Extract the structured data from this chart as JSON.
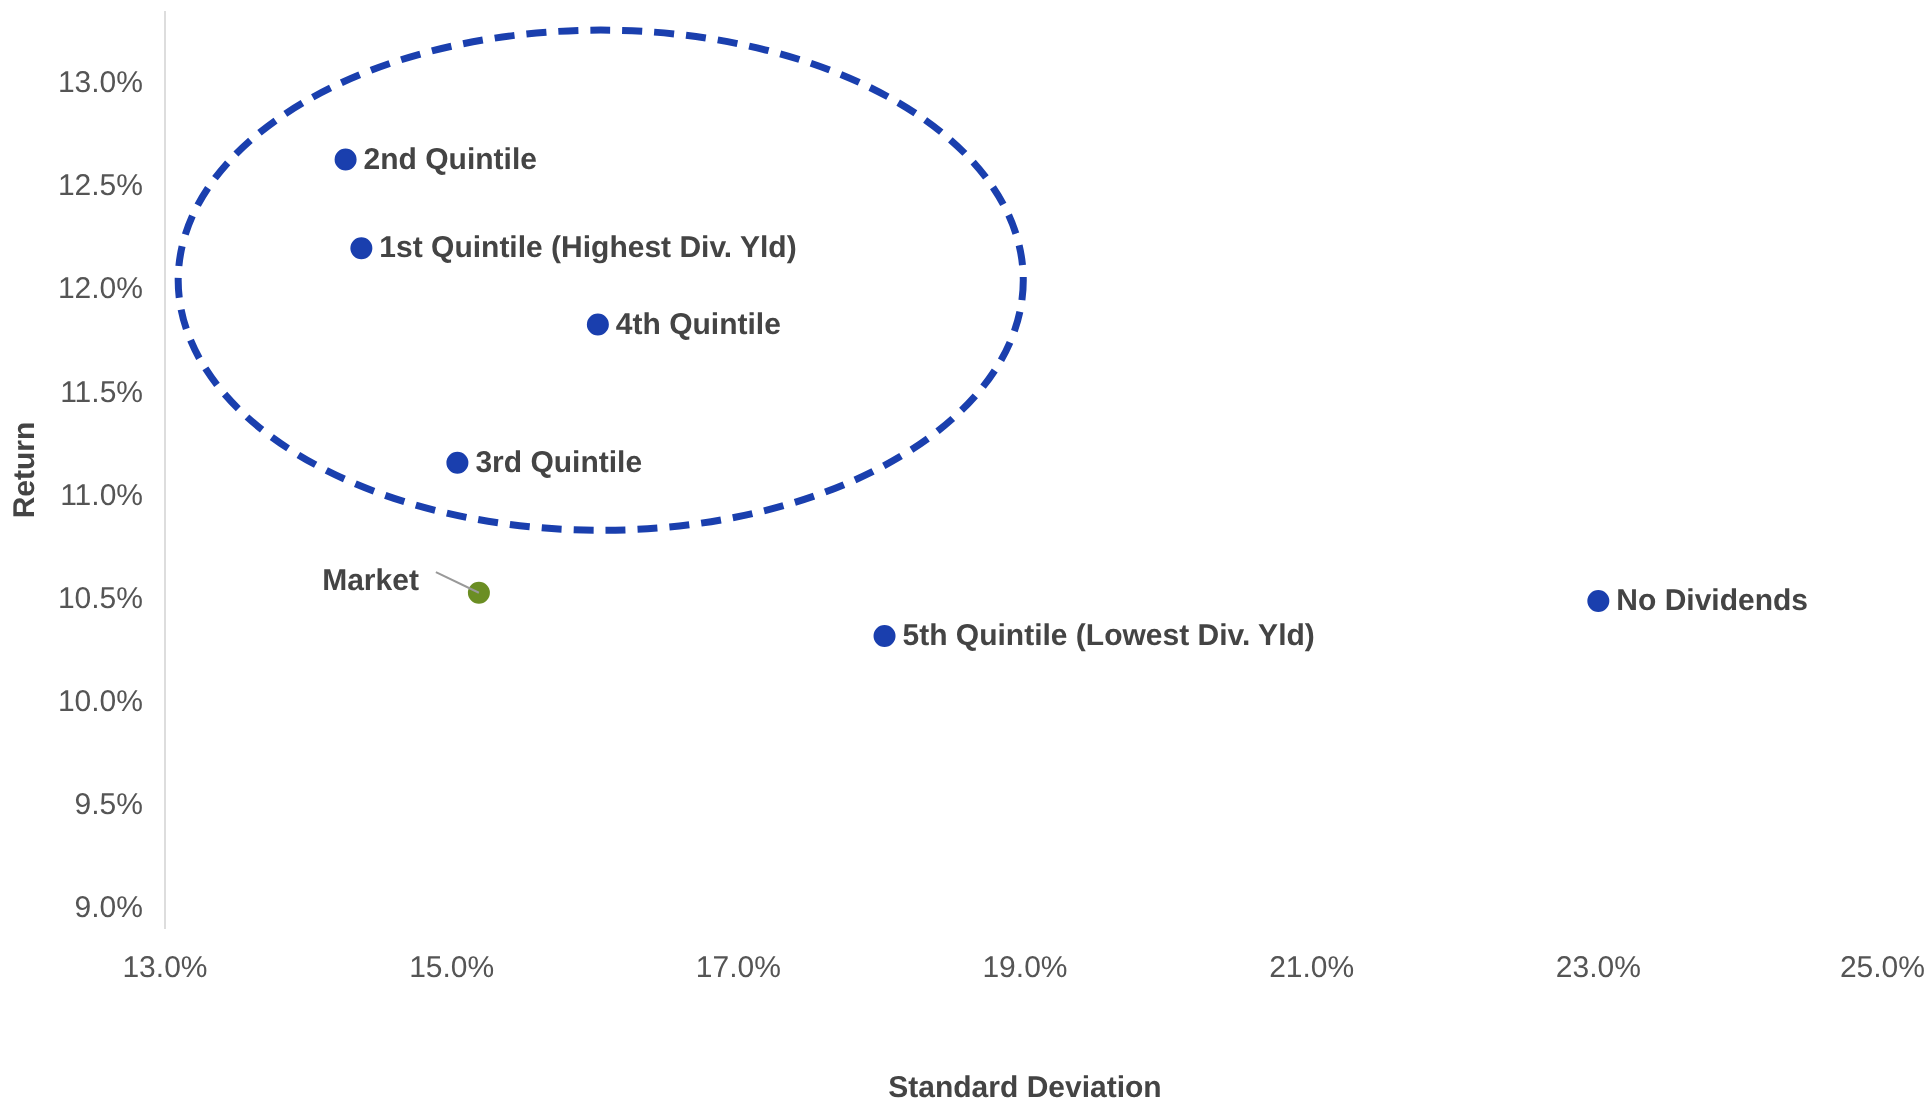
{
  "chart_data": {
    "type": "scatter",
    "xlabel": "Standard Deviation",
    "ylabel": "Return",
    "xticks": [
      {
        "value": 13,
        "label": "13.0%"
      },
      {
        "value": 15,
        "label": "15.0%"
      },
      {
        "value": 17,
        "label": "17.0%"
      },
      {
        "value": 19,
        "label": "19.0%"
      },
      {
        "value": 21,
        "label": "21.0%"
      },
      {
        "value": 23,
        "label": "23.0%"
      },
      {
        "value": 25,
        "label": "25.0%"
      }
    ],
    "yticks": [
      {
        "value": 9,
        "label": "9.0%"
      },
      {
        "value": 9.5,
        "label": "9.5%"
      },
      {
        "value": 10,
        "label": "10.0%"
      },
      {
        "value": 10.5,
        "label": "10.5%"
      },
      {
        "value": 11,
        "label": "11.0%"
      },
      {
        "value": 11.5,
        "label": "11.5%"
      },
      {
        "value": 12,
        "label": "12.0%"
      },
      {
        "value": 12.5,
        "label": "12.5%"
      },
      {
        "value": 13,
        "label": "13.0%"
      }
    ],
    "xlim": [
      13,
      25
    ],
    "ylim": [
      8.9,
      13.35
    ],
    "grid": false,
    "marker": "circle",
    "series": [
      {
        "name": "2nd Quintile",
        "color": "#1a3fae",
        "x": [
          14.26
        ],
        "values": [
          12.63
        ]
      },
      {
        "name": "1st Quintile (Highest Div. Yld)",
        "color": "#1a3fae",
        "x": [
          14.37
        ],
        "values": [
          12.2
        ]
      },
      {
        "name": "4th Quintile",
        "color": "#1a3fae",
        "x": [
          16.02
        ],
        "values": [
          11.83
        ]
      },
      {
        "name": "3rd Quintile",
        "color": "#1a3fae",
        "x": [
          15.04
        ],
        "values": [
          11.16
        ]
      },
      {
        "name": "5th Quintile (Lowest Div. Yld)",
        "color": "#1a3fae",
        "x": [
          18.02
        ],
        "values": [
          10.32
        ]
      },
      {
        "name": "No Dividends",
        "color": "#1a3fae",
        "x": [
          23.0
        ],
        "values": [
          10.49
        ]
      },
      {
        "color": "#6b8e23",
        "x": [
          15.19
        ],
        "values": [
          10.53
        ]
      }
    ],
    "annotations": [
      {
        "text": "Market",
        "x": 15.19,
        "y": 10.53
      }
    ]
  }
}
